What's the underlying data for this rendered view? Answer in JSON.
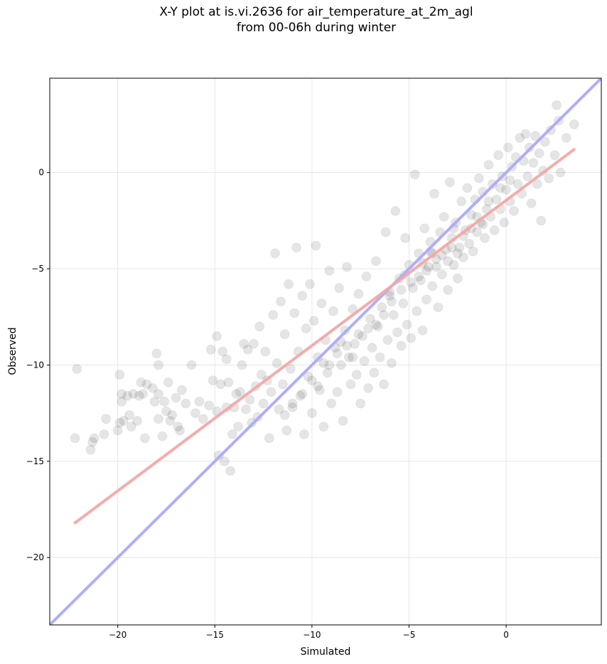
{
  "chart_data": {
    "type": "scatter",
    "title": [
      "X-Y plot at is.vi.2636 for air_temperature_at_2m_agl",
      "from 00-06h during winter"
    ],
    "xlabel": "Simulated",
    "ylabel": "Observed",
    "xlim": [
      -23.5,
      4.9
    ],
    "ylim": [
      -23.5,
      4.9
    ],
    "xticks": [
      -20,
      -15,
      -10,
      -5,
      0
    ],
    "yticks": [
      -20,
      -15,
      -10,
      -5,
      0
    ],
    "xtick_labels": [
      "−20",
      "−15",
      "−10",
      "−5",
      "0"
    ],
    "ytick_labels": [
      "−20",
      "−15",
      "−10",
      "−5",
      "0"
    ],
    "grid": true,
    "lines": [
      {
        "role": "1:1 line",
        "color": "#aaaaff",
        "points": [
          [
            -23.5,
            -23.5
          ],
          [
            4.9,
            4.9
          ]
        ]
      },
      {
        "role": "regression fit",
        "color": "#f4a6a6",
        "points": [
          [
            -22.2,
            -18.2
          ],
          [
            3.5,
            1.2
          ]
        ]
      }
    ],
    "points": [
      [
        -22.1,
        -10.2
      ],
      [
        -22.2,
        -13.8
      ],
      [
        -21.4,
        -14.4
      ],
      [
        -21.3,
        -14.0
      ],
      [
        -21.2,
        -13.8
      ],
      [
        -20.7,
        -13.6
      ],
      [
        -20.6,
        -12.8
      ],
      [
        -20.0,
        -13.4
      ],
      [
        -19.9,
        -10.5
      ],
      [
        -19.9,
        -13.0
      ],
      [
        -19.8,
        -11.5
      ],
      [
        -19.8,
        -11.9
      ],
      [
        -19.7,
        -12.9
      ],
      [
        -19.5,
        -11.6
      ],
      [
        -19.4,
        -12.6
      ],
      [
        -19.3,
        -13.2
      ],
      [
        -19.2,
        -11.5
      ],
      [
        -19.0,
        -12.9
      ],
      [
        -18.9,
        -11.6
      ],
      [
        -18.8,
        -10.9
      ],
      [
        -18.7,
        -11.5
      ],
      [
        -18.6,
        -13.8
      ],
      [
        -18.5,
        -11.0
      ],
      [
        -18.2,
        -11.2
      ],
      [
        -18.1,
        -11.9
      ],
      [
        -18.0,
        -9.4
      ],
      [
        -17.9,
        -10.0
      ],
      [
        -17.9,
        -11.5
      ],
      [
        -17.9,
        -12.8
      ],
      [
        -17.7,
        -13.7
      ],
      [
        -17.6,
        -11.9
      ],
      [
        -17.5,
        -12.4
      ],
      [
        -17.4,
        -10.9
      ],
      [
        -17.3,
        -12.9
      ],
      [
        -17.2,
        -12.6
      ],
      [
        -17.0,
        -11.7
      ],
      [
        -16.9,
        -13.2
      ],
      [
        -16.8,
        -13.4
      ],
      [
        -16.7,
        -11.3
      ],
      [
        -16.5,
        -12.0
      ],
      [
        -16.2,
        -10.0
      ],
      [
        -16.0,
        -12.5
      ],
      [
        -15.8,
        -11.9
      ],
      [
        -15.6,
        -12.8
      ],
      [
        -15.3,
        -12.1
      ],
      [
        -15.2,
        -9.2
      ],
      [
        -15.1,
        -10.8
      ],
      [
        -14.9,
        -8.5
      ],
      [
        -14.9,
        -12.4
      ],
      [
        -14.8,
        -14.7
      ],
      [
        -14.7,
        -11.0
      ],
      [
        -14.6,
        -9.3
      ],
      [
        -14.5,
        -15.0
      ],
      [
        -14.4,
        -9.7
      ],
      [
        -14.4,
        -12.2
      ],
      [
        -14.3,
        -10.9
      ],
      [
        -14.2,
        -15.5
      ],
      [
        -14.1,
        -13.6
      ],
      [
        -14.0,
        -12.2
      ],
      [
        -13.9,
        -11.5
      ],
      [
        -13.8,
        -13.2
      ],
      [
        -13.7,
        -11.4
      ],
      [
        -13.6,
        -10.0
      ],
      [
        -13.5,
        -8.9
      ],
      [
        -13.4,
        -12.3
      ],
      [
        -13.3,
        -9.2
      ],
      [
        -13.2,
        -11.8
      ],
      [
        -13.1,
        -13.0
      ],
      [
        -13.0,
        -8.9
      ],
      [
        -12.9,
        -11.1
      ],
      [
        -12.8,
        -12.7
      ],
      [
        -12.7,
        -8.0
      ],
      [
        -12.6,
        -10.5
      ],
      [
        -12.5,
        -12.0
      ],
      [
        -12.4,
        -9.3
      ],
      [
        -12.3,
        -10.8
      ],
      [
        -12.2,
        -13.8
      ],
      [
        -12.1,
        -11.4
      ],
      [
        -12.0,
        -7.4
      ],
      [
        -11.9,
        -4.2
      ],
      [
        -11.8,
        -9.9
      ],
      [
        -11.7,
        -12.3
      ],
      [
        -11.6,
        -6.7
      ],
      [
        -11.5,
        -11.0
      ],
      [
        -11.4,
        -8.4
      ],
      [
        -11.3,
        -13.4
      ],
      [
        -11.2,
        -5.8
      ],
      [
        -11.1,
        -10.2
      ],
      [
        -11.0,
        -12.0
      ],
      [
        -10.9,
        -7.3
      ],
      [
        -10.8,
        -3.9
      ],
      [
        -10.7,
        -9.3
      ],
      [
        -10.6,
        -11.6
      ],
      [
        -10.5,
        -6.4
      ],
      [
        -10.4,
        -13.6
      ],
      [
        -10.3,
        -8.1
      ],
      [
        -10.2,
        -10.6
      ],
      [
        -10.1,
        -5.8
      ],
      [
        -10.0,
        -12.5
      ],
      [
        -9.9,
        -7.7
      ],
      [
        -9.8,
        -3.8
      ],
      [
        -9.7,
        -9.6
      ],
      [
        -9.6,
        -11.3
      ],
      [
        -9.5,
        -6.8
      ],
      [
        -9.4,
        -13.2
      ],
      [
        -9.3,
        -8.7
      ],
      [
        -9.2,
        -10.4
      ],
      [
        -9.1,
        -5.1
      ],
      [
        -9.0,
        -12.0
      ],
      [
        -8.9,
        -7.2
      ],
      [
        -8.8,
        -9.1
      ],
      [
        -8.7,
        -11.4
      ],
      [
        -8.6,
        -6.0
      ],
      [
        -8.5,
        -10.0
      ],
      [
        -8.4,
        -12.9
      ],
      [
        -8.3,
        -8.2
      ],
      [
        -8.2,
        -4.9
      ],
      [
        -8.1,
        -9.6
      ],
      [
        -8.0,
        -11.0
      ],
      [
        -7.9,
        -7.1
      ],
      [
        -7.8,
        -8.9
      ],
      [
        -7.7,
        -10.5
      ],
      [
        -7.6,
        -6.3
      ],
      [
        -7.5,
        -12.0
      ],
      [
        -7.4,
        -8.5
      ],
      [
        -7.3,
        -9.8
      ],
      [
        -7.2,
        -5.4
      ],
      [
        -7.1,
        -11.2
      ],
      [
        -7.0,
        -7.6
      ],
      [
        -6.9,
        -9.1
      ],
      [
        -6.8,
        -10.4
      ],
      [
        -6.7,
        -4.6
      ],
      [
        -6.6,
        -8.0
      ],
      [
        -6.5,
        -9.6
      ],
      [
        -6.4,
        -7.0
      ],
      [
        -6.3,
        -11.0
      ],
      [
        -6.2,
        -3.1
      ],
      [
        -6.1,
        -8.7
      ],
      [
        -6.0,
        -6.2
      ],
      [
        -5.9,
        -9.9
      ],
      [
        -5.8,
        -7.4
      ],
      [
        -5.7,
        -2.0
      ],
      [
        -5.6,
        -8.3
      ],
      [
        -5.5,
        -5.5
      ],
      [
        -5.4,
        -9.0
      ],
      [
        -5.3,
        -6.8
      ],
      [
        -5.2,
        -3.4
      ],
      [
        -5.1,
        -7.9
      ],
      [
        -5.0,
        -4.8
      ],
      [
        -4.9,
        -8.6
      ],
      [
        -4.8,
        -6.0
      ],
      [
        -4.7,
        -0.1
      ],
      [
        -4.6,
        -7.2
      ],
      [
        -4.5,
        -4.2
      ],
      [
        -4.4,
        -5.6
      ],
      [
        -4.3,
        -8.2
      ],
      [
        -4.2,
        -2.9
      ],
      [
        -4.1,
        -6.6
      ],
      [
        -4.0,
        -4.9
      ],
      [
        -3.9,
        -3.6
      ],
      [
        -3.8,
        -5.9
      ],
      [
        -3.7,
        -1.1
      ],
      [
        -3.6,
        -4.5
      ],
      [
        -3.5,
        -7.0
      ],
      [
        -3.4,
        -3.1
      ],
      [
        -3.3,
        -5.3
      ],
      [
        -3.2,
        -2.3
      ],
      [
        -3.1,
        -4.0
      ],
      [
        -3.0,
        -6.1
      ],
      [
        -2.9,
        -0.5
      ],
      [
        -2.8,
        -3.4
      ],
      [
        -2.7,
        -4.8
      ],
      [
        -2.6,
        -2.6
      ],
      [
        -2.5,
        -5.5
      ],
      [
        -2.4,
        -3.9
      ],
      [
        -2.3,
        -1.5
      ],
      [
        -2.2,
        -4.4
      ],
      [
        -2.1,
        -3.0
      ],
      [
        -2.0,
        -0.8
      ],
      [
        -1.9,
        -3.7
      ],
      [
        -1.8,
        -2.2
      ],
      [
        -1.7,
        -4.1
      ],
      [
        -1.6,
        -1.4
      ],
      [
        -1.5,
        -3.1
      ],
      [
        -1.4,
        -0.3
      ],
      [
        -1.3,
        -2.6
      ],
      [
        -1.2,
        -1.0
      ],
      [
        -1.1,
        -3.4
      ],
      [
        -1.0,
        -1.9
      ],
      [
        -0.9,
        0.4
      ],
      [
        -0.8,
        -2.3
      ],
      [
        -0.7,
        -0.6
      ],
      [
        -0.6,
        -3.0
      ],
      [
        -0.5,
        -1.4
      ],
      [
        -0.4,
        0.9
      ],
      [
        -0.3,
        -1.9
      ],
      [
        -0.2,
        -0.2
      ],
      [
        -0.1,
        -2.6
      ],
      [
        0.0,
        -0.9
      ],
      [
        0.1,
        1.3
      ],
      [
        0.2,
        -1.5
      ],
      [
        0.3,
        0.3
      ],
      [
        0.4,
        -2.0
      ],
      [
        0.5,
        0.8
      ],
      [
        0.6,
        -0.6
      ],
      [
        0.7,
        1.8
      ],
      [
        0.8,
        -1.1
      ],
      [
        0.9,
        0.6
      ],
      [
        1.0,
        2.0
      ],
      [
        1.1,
        -0.2
      ],
      [
        1.2,
        1.3
      ],
      [
        1.3,
        -1.6
      ],
      [
        1.4,
        0.5
      ],
      [
        1.5,
        1.9
      ],
      [
        1.6,
        -0.6
      ],
      [
        1.7,
        1.0
      ],
      [
        1.8,
        -2.5
      ],
      [
        1.9,
        0.1
      ],
      [
        2.0,
        1.6
      ],
      [
        2.2,
        -0.3
      ],
      [
        2.3,
        2.2
      ],
      [
        2.5,
        0.9
      ],
      [
        2.6,
        3.5
      ],
      [
        2.7,
        2.7
      ],
      [
        2.8,
        0.0
      ],
      [
        3.1,
        1.8
      ],
      [
        3.5,
        2.5
      ],
      [
        -1.2,
        -2.7
      ],
      [
        -2.5,
        -4.2
      ],
      [
        -3.0,
        -4.6
      ],
      [
        -4.1,
        -5.1
      ],
      [
        -3.6,
        -4.9
      ],
      [
        -2.8,
        -3.9
      ],
      [
        -2.2,
        -3.3
      ],
      [
        -1.8,
        -2.9
      ],
      [
        -3.3,
        -4.3
      ],
      [
        -4.5,
        -5.4
      ],
      [
        -3.9,
        -4.1
      ],
      [
        -2.7,
        -2.9
      ],
      [
        -1.5,
        -2.3
      ],
      [
        -0.9,
        -1.5
      ],
      [
        -0.3,
        -0.8
      ],
      [
        0.2,
        -0.4
      ],
      [
        -8.7,
        -9.4
      ],
      [
        -8.2,
        -9.0
      ],
      [
        -9.1,
        -10.0
      ],
      [
        -7.6,
        -8.4
      ],
      [
        -8.5,
        -8.8
      ],
      [
        -9.4,
        -9.9
      ],
      [
        -7.9,
        -9.6
      ],
      [
        -10.0,
        -10.8
      ],
      [
        -9.7,
        -11.1
      ],
      [
        -10.5,
        -11.5
      ],
      [
        -11.0,
        -12.2
      ],
      [
        -11.4,
        -12.6
      ],
      [
        -6.3,
        -7.4
      ],
      [
        -5.9,
        -6.7
      ],
      [
        -6.7,
        -7.9
      ],
      [
        -5.4,
        -6.1
      ],
      [
        -4.9,
        -5.7
      ],
      [
        -7.1,
        -8.1
      ],
      [
        -6.0,
        -6.4
      ],
      [
        -5.2,
        -5.3
      ],
      [
        -4.3,
        -4.7
      ],
      [
        -3.8,
        -4.2
      ]
    ]
  }
}
